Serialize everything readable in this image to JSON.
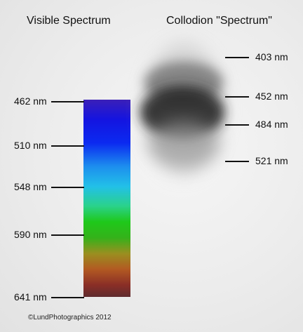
{
  "headings": {
    "left": "Visible Spectrum",
    "right": "Collodion \"Spectrum\""
  },
  "visible_ticks": [
    {
      "label": "462 nm",
      "nm": 462
    },
    {
      "label": "510 nm",
      "nm": 510
    },
    {
      "label": "548 nm",
      "nm": 548
    },
    {
      "label": "590 nm",
      "nm": 590
    },
    {
      "label": "641 nm",
      "nm": 641
    }
  ],
  "collodion_ticks": [
    {
      "label": "403 nm",
      "nm": 403
    },
    {
      "label": "452 nm",
      "nm": 452
    },
    {
      "label": "484 nm",
      "nm": 484
    },
    {
      "label": "521 nm",
      "nm": 521
    }
  ],
  "copyright": "©LundPhotographics 2012",
  "colors": {
    "background": "#ececec",
    "label": "#111111",
    "spectrum_violet": "#3b1fb8",
    "spectrum_blue": "#0b1ef0",
    "spectrum_cyan": "#24b6ec",
    "spectrum_green": "#1fc81a",
    "spectrum_orange": "#a4741f",
    "spectrum_red": "#6c2a26"
  }
}
